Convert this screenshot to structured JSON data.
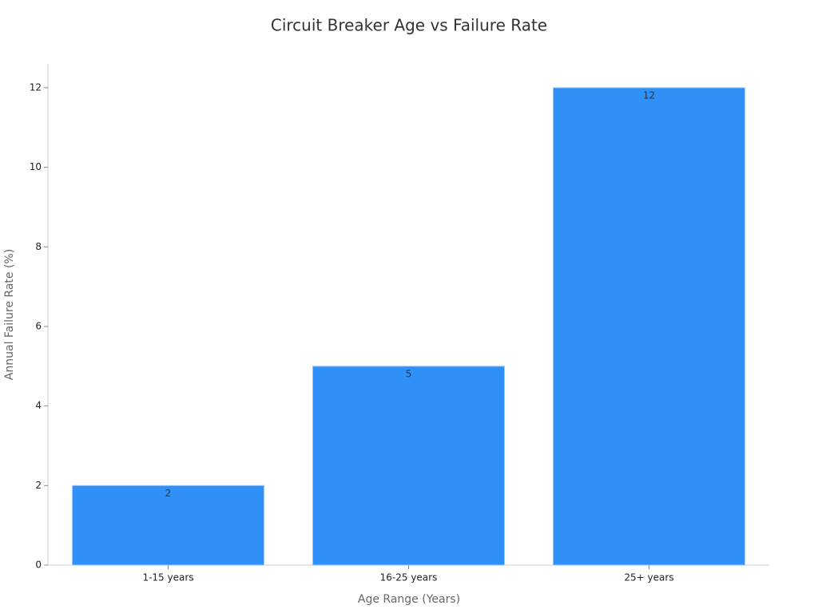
{
  "chart_data": {
    "type": "bar",
    "title": "Circuit Breaker Age vs Failure Rate",
    "x_label": "Age Range (Years)",
    "y_label": "Annual Failure Rate (%)",
    "categories": [
      "1-15 years",
      "16-25 years",
      "25+ years"
    ],
    "values": [
      2,
      5,
      12
    ],
    "color": "#2f91f8",
    "ylim": [
      0,
      12.6
    ],
    "yticks": [
      0,
      2,
      4,
      6,
      8,
      10,
      12
    ],
    "grid": false
  }
}
